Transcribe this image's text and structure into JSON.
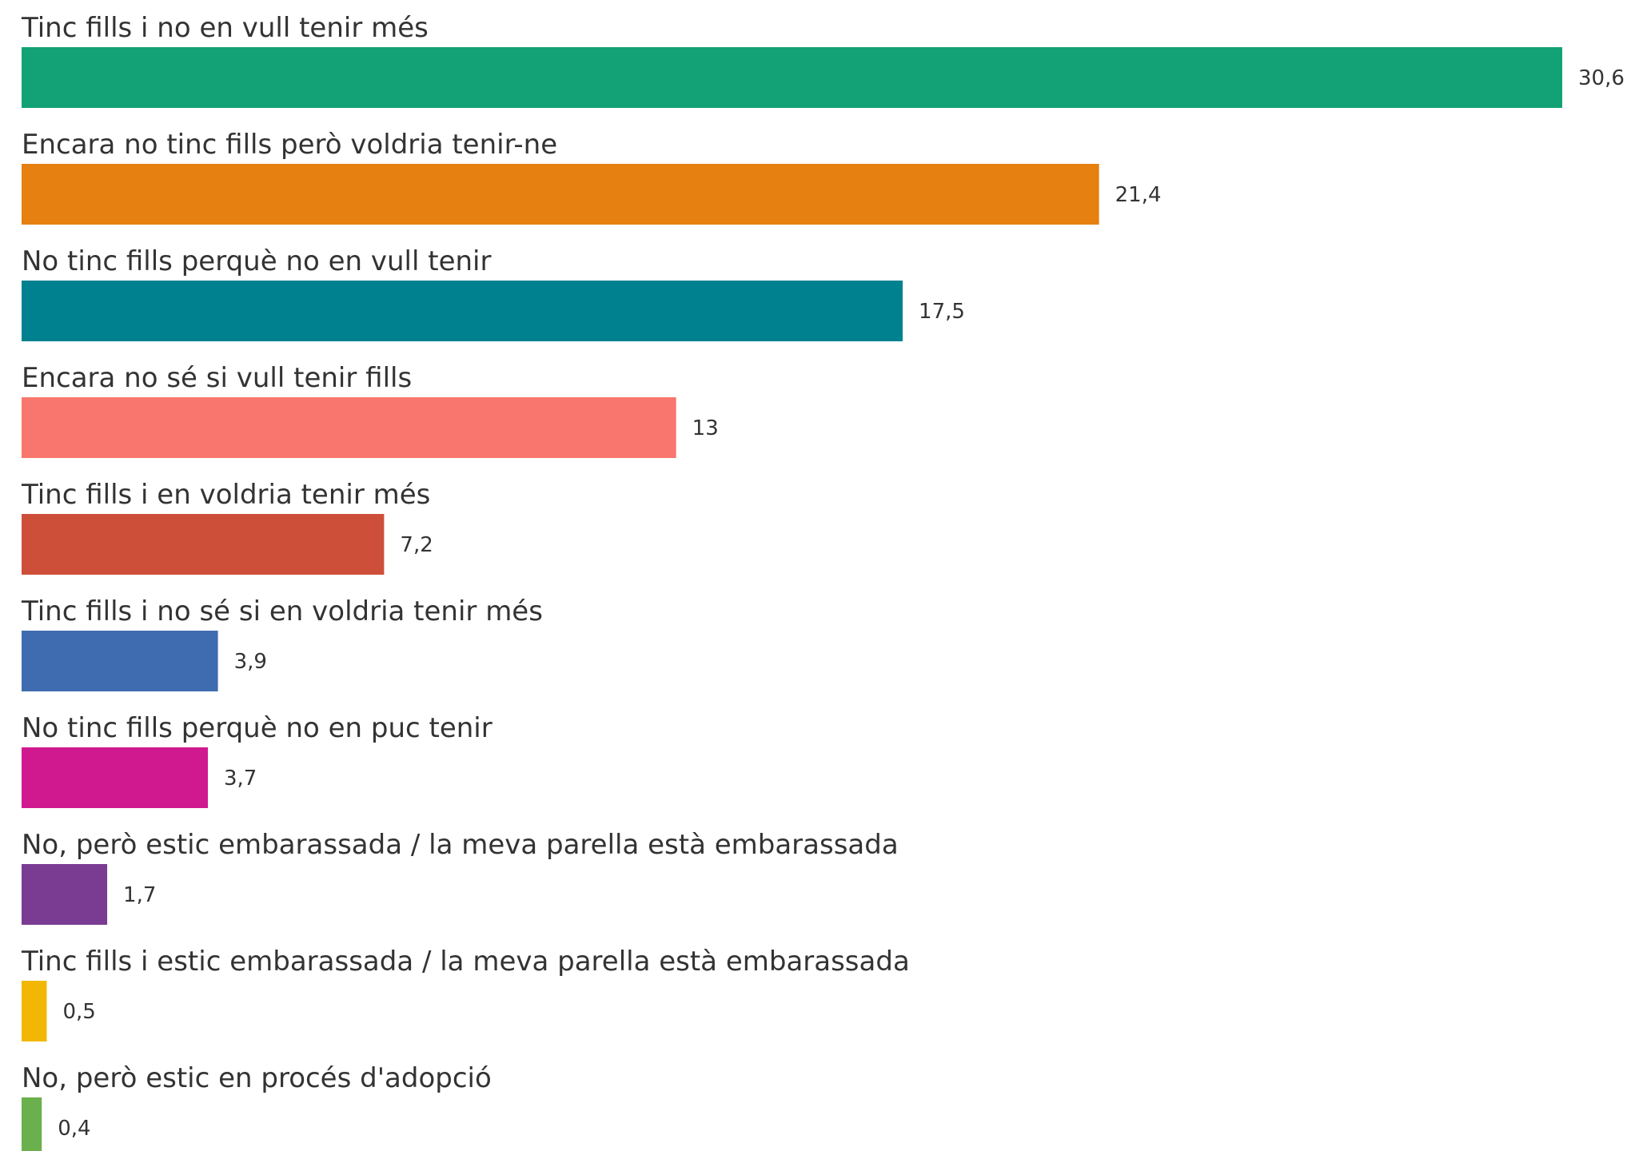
{
  "chart_data": {
    "type": "bar",
    "orientation": "horizontal",
    "categories": [
      "Tinc fills i no en vull tenir més",
      "Encara no tinc fills però voldria tenir-ne",
      "No tinc fills perquè no en vull tenir",
      "Encara no sé si vull tenir fills",
      "Tinc fills i en voldria tenir més",
      "Tinc fills i no sé si en voldria tenir més",
      "No tinc fills perquè no en puc tenir",
      "No, però estic embarassada / la meva parella està embarassada",
      "Tinc fills i estic embarassada / la meva parella està embarassada",
      "No, però estic en procés d'adopció"
    ],
    "values": [
      30.6,
      21.4,
      17.5,
      13,
      7.2,
      3.9,
      3.7,
      1.7,
      0.5,
      0.4
    ],
    "value_labels": [
      "30,6",
      "21,4",
      "17,5",
      "13",
      "7,2",
      "3,9",
      "3,7",
      "1,7",
      "0,5",
      "0,4"
    ],
    "colors": [
      "#13a275",
      "#e58011",
      "#00818f",
      "#f8766d",
      "#cd4f3a",
      "#3f6bb0",
      "#d1198f",
      "#7a3b93",
      "#f2b705",
      "#6ab04c"
    ],
    "xlim": [
      0,
      30.6
    ],
    "grid": false,
    "legend": "none"
  }
}
